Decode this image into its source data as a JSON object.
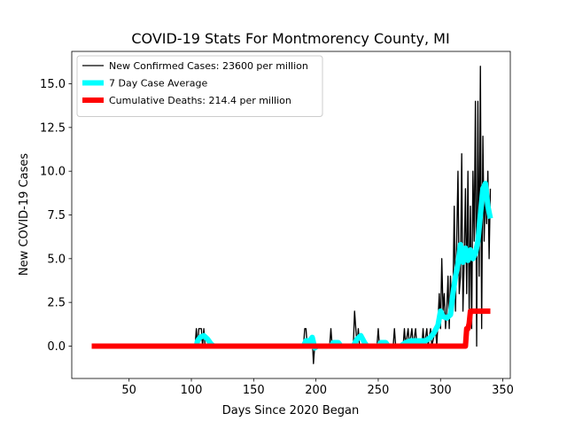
{
  "chart_data": {
    "type": "line",
    "title": "COVID-19 Stats For Montmorency County, MI",
    "x_label": "Days Since 2020 Began",
    "y_label": "New COVID-19 Cases",
    "xlim": [
      4,
      356
    ],
    "ylim": [
      -1.85,
      16.85
    ],
    "xticks": [
      50,
      100,
      150,
      200,
      250,
      300,
      350
    ],
    "yticks": [
      {
        "value": 0,
        "label": "0.0"
      },
      2.5,
      {
        "value": 5,
        "label": "5.0"
      },
      7.5,
      {
        "value": 10,
        "label": "10.0"
      },
      12.5,
      {
        "value": 15,
        "label": "15.0"
      }
    ],
    "legend": "upper left",
    "series": [
      {
        "name": "New Confirmed Cases: 23600 per million",
        "color": "#000000",
        "linewidth": 1,
        "x": [
          20,
          103,
          104,
          105,
          106,
          107,
          108,
          109,
          110,
          111,
          190,
          191,
          192,
          193,
          196,
          197,
          198,
          199,
          211,
          212,
          213,
          230,
          231,
          232,
          233,
          234,
          235,
          249,
          250,
          251,
          262,
          263,
          264,
          270,
          271,
          272,
          274,
          275,
          277,
          278,
          280,
          281,
          285,
          286,
          287,
          289,
          290,
          292,
          293,
          296,
          297,
          299,
          300,
          301,
          302,
          303,
          304,
          305,
          306,
          307,
          308,
          309,
          310,
          311,
          312,
          313,
          314,
          315,
          316,
          317,
          318,
          319,
          320,
          321,
          322,
          323,
          324,
          325,
          326,
          327,
          328,
          329,
          330,
          331,
          332,
          333,
          334,
          335,
          336,
          337,
          338,
          339,
          340
        ],
        "values": [
          0,
          0,
          1,
          0,
          1,
          1,
          1,
          0,
          1,
          0,
          0,
          1,
          1,
          0,
          0,
          0.5,
          -1,
          0,
          0,
          1,
          0,
          0,
          2,
          1,
          0,
          1,
          0,
          0,
          1,
          0,
          0,
          1,
          0,
          0,
          1,
          0,
          1,
          0,
          1,
          0,
          1,
          0,
          0,
          1,
          0,
          1,
          0,
          1,
          0,
          1,
          0,
          3,
          1,
          5,
          2,
          3,
          1,
          2,
          4,
          1,
          4,
          2,
          3,
          8,
          2,
          6,
          10,
          3,
          4,
          11,
          2,
          5,
          9,
          3,
          10,
          2,
          8,
          1,
          10,
          6,
          14,
          0,
          14,
          4,
          16,
          1,
          12,
          6,
          9,
          7,
          10,
          5,
          9
        ]
      },
      {
        "name": "7 Day Case Average",
        "color": "#00ffff",
        "linewidth": 4.5,
        "x": [
          20,
          104,
          105,
          107,
          110,
          113,
          116,
          118,
          190,
          192,
          195,
          197,
          199,
          201,
          212,
          214,
          218,
          220,
          230,
          233,
          236,
          239,
          241,
          250,
          252,
          256,
          258,
          268,
          272,
          276,
          282,
          288,
          292,
          295,
          298,
          300,
          302,
          305,
          308,
          310,
          312,
          314,
          316,
          318,
          320,
          322,
          324,
          326,
          328,
          330,
          332,
          334,
          336,
          338,
          340
        ],
        "values": [
          0,
          0,
          0.3,
          0.5,
          0.6,
          0.4,
          0.1,
          0,
          0,
          0.3,
          0.3,
          0.5,
          -0.1,
          0,
          0,
          0.2,
          0.2,
          0,
          0,
          0.4,
          0.6,
          0.2,
          0,
          0,
          0.2,
          0.2,
          0,
          0,
          0.2,
          0.3,
          0.3,
          0.3,
          0.5,
          0.8,
          1.2,
          2,
          1.7,
          1.6,
          1.8,
          3,
          4,
          4.7,
          5.8,
          4.8,
          5.6,
          4.9,
          5.5,
          5,
          5.3,
          6,
          7.5,
          9,
          9.3,
          8,
          7.3
        ]
      },
      {
        "name": "Cumulative Deaths: 214.4 per million",
        "color": "#ff0000",
        "linewidth": 4.5,
        "x": [
          20,
          320,
          321,
          322,
          323,
          324,
          340
        ],
        "values": [
          0,
          0,
          1,
          1,
          1.3,
          2,
          2
        ]
      }
    ]
  }
}
